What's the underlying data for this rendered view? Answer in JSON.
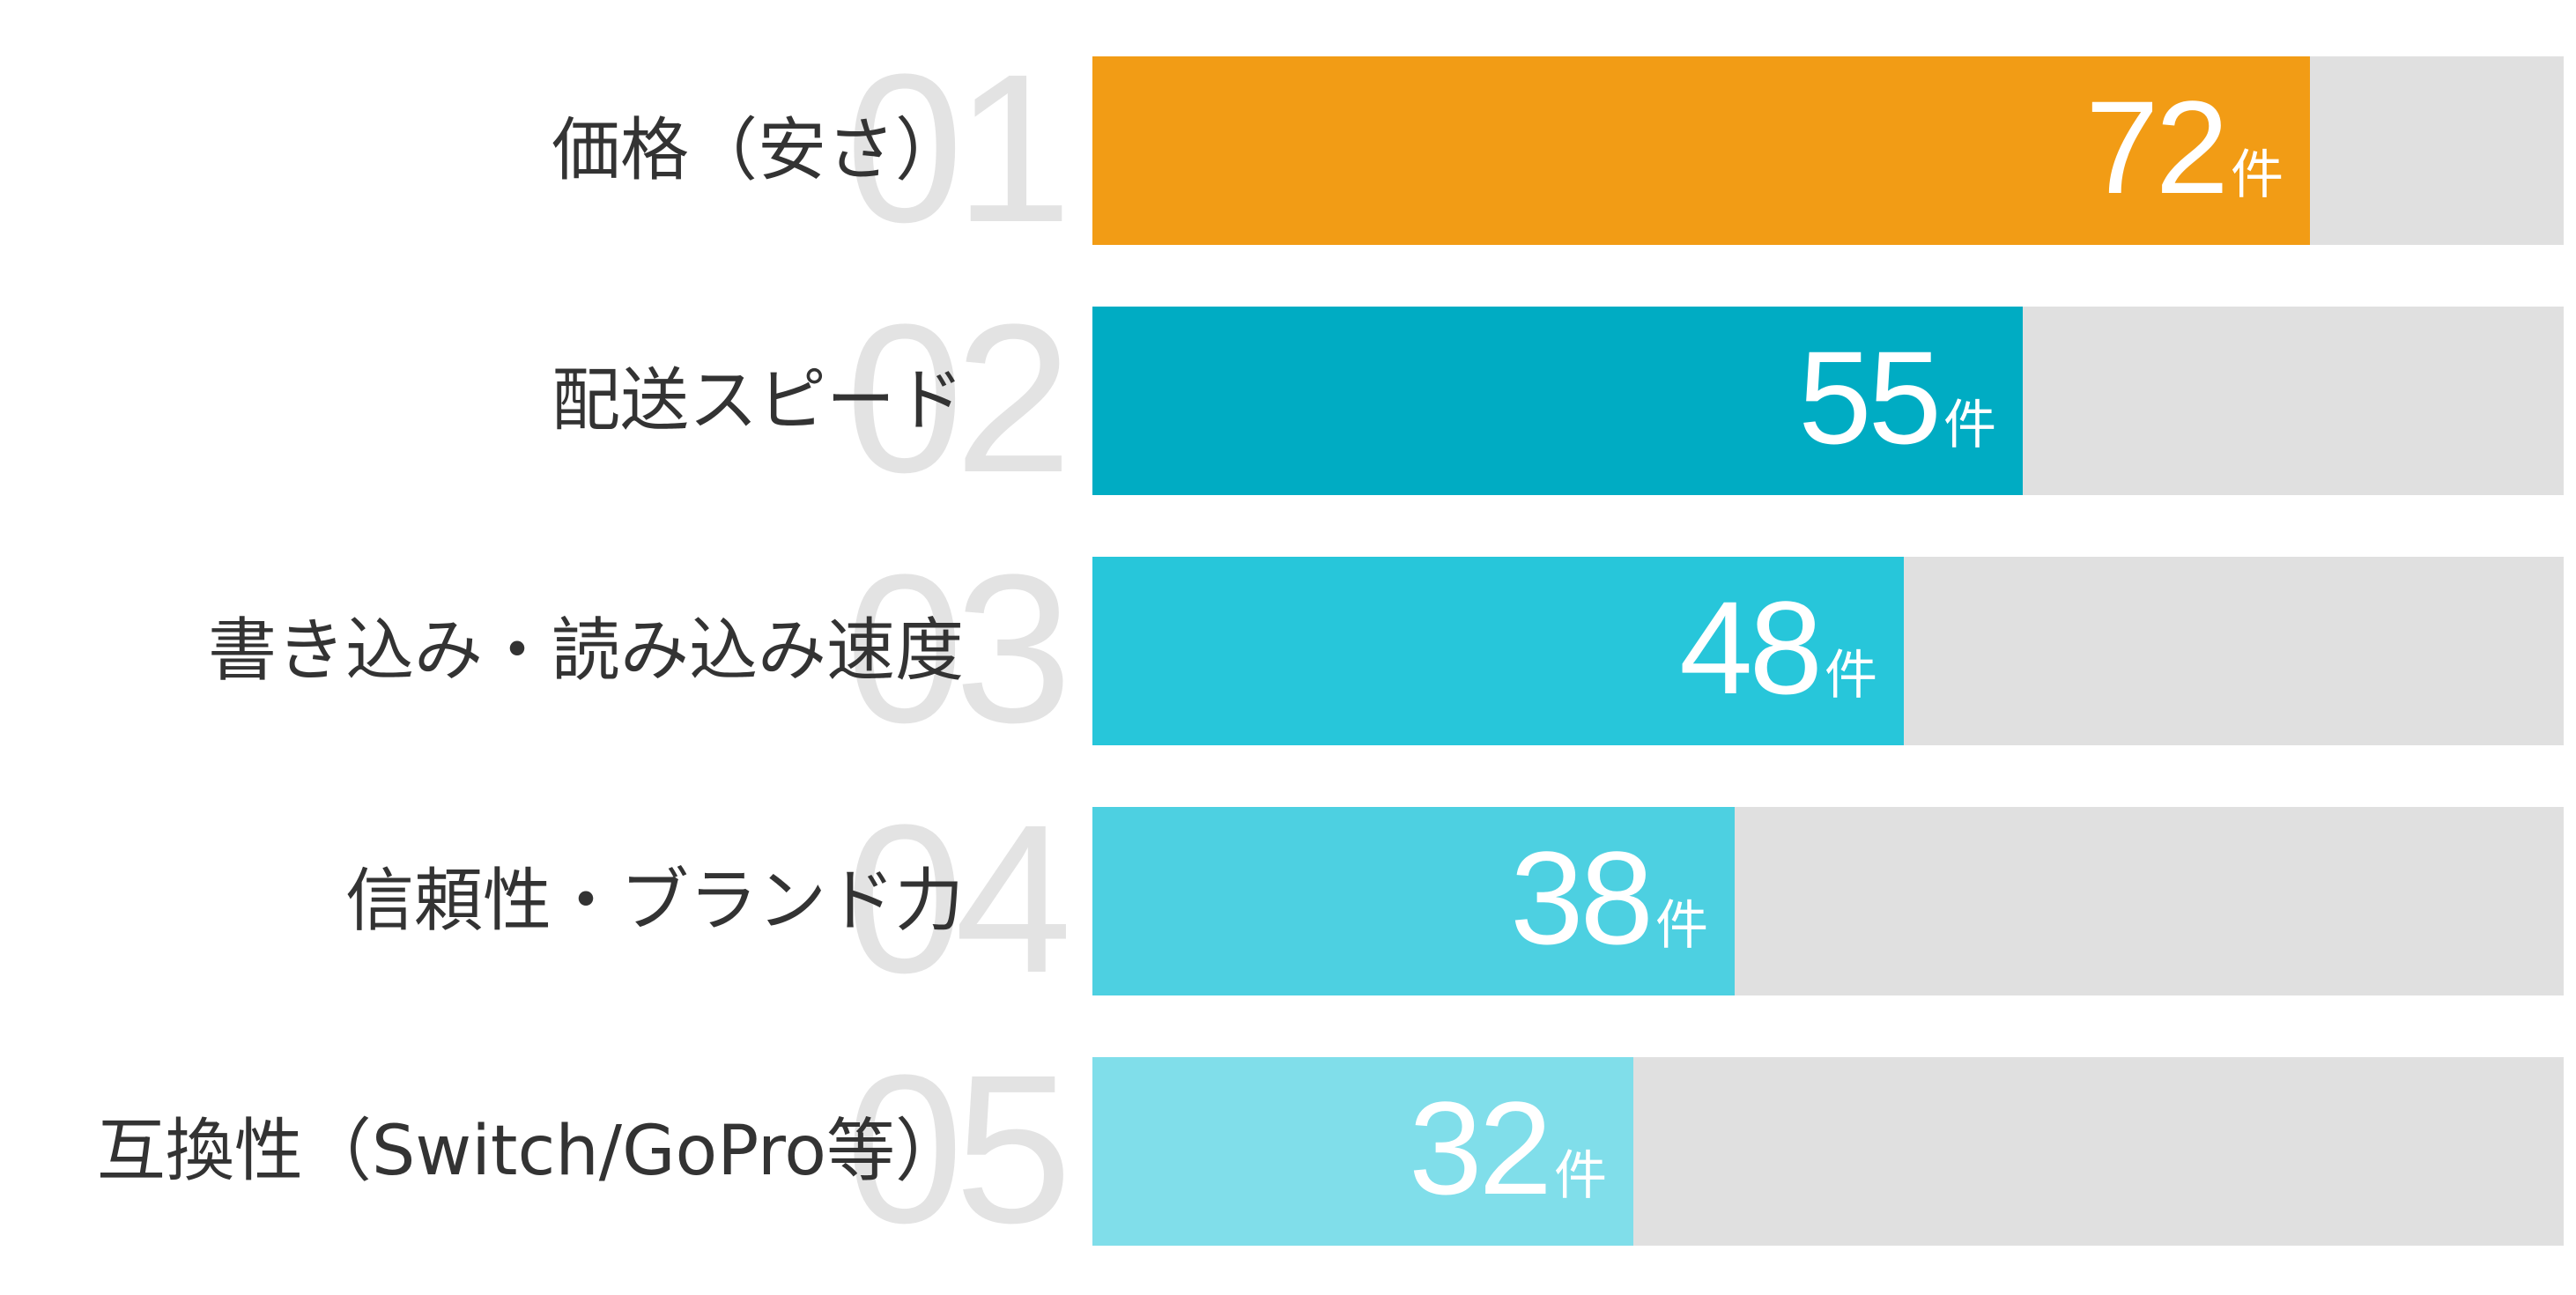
{
  "chart_data": {
    "type": "bar",
    "orientation": "horizontal",
    "categories": [
      "価格（安さ）",
      "配送スピード",
      "書き込み・読み込み速度",
      "信頼性・ブランド力",
      "互換性（Switch/GoPro等）"
    ],
    "ranks": [
      "01",
      "02",
      "03",
      "04",
      "05"
    ],
    "values": [
      72,
      55,
      48,
      38,
      32
    ],
    "unit": "件",
    "xlim": [
      0,
      87
    ],
    "colors": [
      "#F29C15",
      "#00ACC3",
      "#27C6DA",
      "#4DD0E1",
      "#80DEEA"
    ],
    "track_color": "#E0E0E0",
    "title": "",
    "xlabel": "",
    "ylabel": "",
    "grid": false,
    "legend": "none"
  }
}
